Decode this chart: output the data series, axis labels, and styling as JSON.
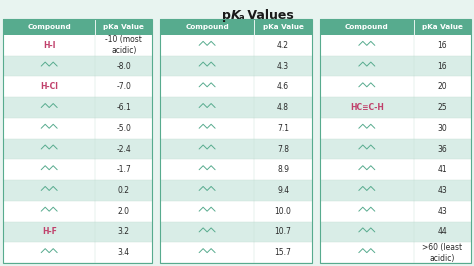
{
  "title_pre": "pK",
  "title_sub": "a",
  "title_post": " Values",
  "header_bg": "#57ab8e",
  "header_text_color": "#ffffff",
  "row_alt_colors": [
    "#ffffff",
    "#d9ede7"
  ],
  "col1_data": [
    [
      "H-I",
      "-10 (most\nacidic)"
    ],
    [
      "",
      "-8.0"
    ],
    [
      "H-Cl",
      "-7.0"
    ],
    [
      "",
      "-6.1"
    ],
    [
      "",
      "-5.0"
    ],
    [
      "",
      "-2.4"
    ],
    [
      "",
      "-1.7"
    ],
    [
      "",
      "0.2"
    ],
    [
      "",
      "2.0"
    ],
    [
      "H-F",
      "3.2"
    ],
    [
      "",
      "3.4"
    ]
  ],
  "col2_data": [
    [
      "",
      "4.2"
    ],
    [
      "",
      "4.3"
    ],
    [
      "",
      "4.6"
    ],
    [
      "",
      "4.8"
    ],
    [
      "",
      "7.1"
    ],
    [
      "",
      "7.8"
    ],
    [
      "",
      "8.9"
    ],
    [
      "",
      "9.4"
    ],
    [
      "",
      "10.0"
    ],
    [
      "",
      "10.7"
    ],
    [
      "",
      "15.7"
    ]
  ],
  "col3_data": [
    [
      "",
      "16"
    ],
    [
      "",
      "16"
    ],
    [
      "",
      "20"
    ],
    [
      "HC≡C-H",
      "25"
    ],
    [
      "",
      "30"
    ],
    [
      "",
      "36"
    ],
    [
      "",
      "41"
    ],
    [
      "",
      "43"
    ],
    [
      "",
      "43"
    ],
    [
      "",
      "44"
    ],
    [
      "",
      ">60 (least\nacidic)"
    ]
  ],
  "special_pink_labels": [
    "H-I",
    "H-Cl",
    "H-F",
    "HC≡C-H"
  ],
  "pink_color": "#c0406b",
  "outer_bg": "#e8f4f0",
  "teal_color": "#57ab8e",
  "gap_color": "#e8f4f0",
  "figure_width": 4.74,
  "figure_height": 2.66,
  "dpi": 100
}
